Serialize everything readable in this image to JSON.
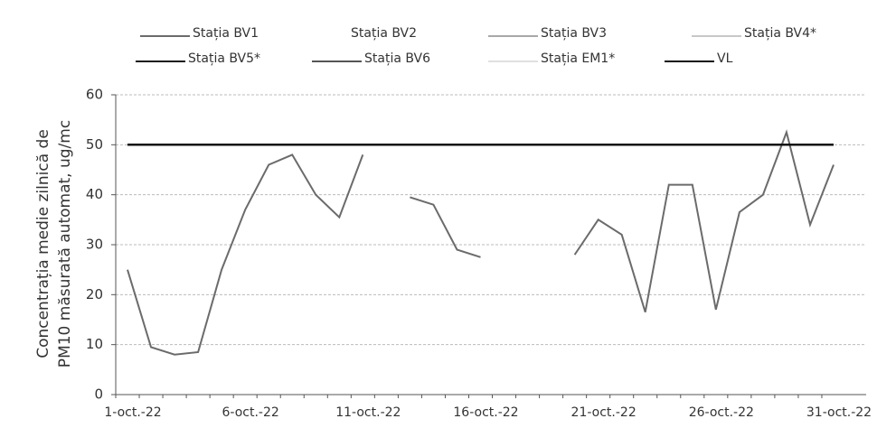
{
  "chart_data": {
    "type": "line",
    "y_label": [
      "Concentrația medie zilnică de",
      "PM10 măsurată automat, ug/mc"
    ],
    "categories": [
      "1-oct.-22",
      null,
      null,
      null,
      null,
      "6-oct.-22",
      null,
      null,
      null,
      null,
      "11-oct.-22",
      null,
      null,
      null,
      null,
      "16-oct.-22",
      null,
      null,
      null,
      null,
      "21-oct.-22",
      null,
      null,
      null,
      null,
      "26-oct.-22",
      null,
      null,
      null,
      null,
      "31-oct.-22"
    ],
    "series": [
      {
        "name": "Stația BV1",
        "color": "#6b6b6b",
        "values": [
          25,
          9.5,
          8,
          8.5,
          25,
          37,
          46,
          48,
          40,
          35.5,
          48,
          null,
          39.5,
          38,
          29,
          27.5,
          null,
          null,
          null,
          28,
          35,
          32,
          16.5,
          42,
          42,
          17,
          36.5,
          40,
          52.5,
          34,
          46
        ]
      },
      {
        "name": "Stația BV2",
        "color": "#ffffff",
        "values": [
          null,
          null,
          null,
          null,
          null,
          null,
          null,
          null,
          null,
          null,
          null,
          null,
          null,
          null,
          null,
          null,
          null,
          null,
          null,
          null,
          null,
          null,
          null,
          null,
          null,
          null,
          null,
          null,
          null,
          null,
          null
        ]
      },
      {
        "name": "Stația BV3",
        "color": "#a8a8a8",
        "values": [
          null,
          null,
          null,
          null,
          null,
          null,
          null,
          null,
          null,
          null,
          null,
          null,
          null,
          null,
          null,
          null,
          null,
          null,
          null,
          null,
          null,
          null,
          null,
          null,
          null,
          null,
          null,
          null,
          null,
          null,
          null
        ]
      },
      {
        "name": "Stația BV4*",
        "color": "#c8c8c8",
        "values": [
          null,
          null,
          null,
          null,
          null,
          null,
          null,
          null,
          null,
          null,
          null,
          null,
          null,
          null,
          null,
          null,
          null,
          null,
          null,
          null,
          null,
          null,
          null,
          null,
          null,
          null,
          null,
          null,
          null,
          null,
          null
        ]
      },
      {
        "name": "Stația BV5*",
        "color": "#1a1a1a",
        "values": [
          null,
          null,
          null,
          null,
          null,
          null,
          null,
          null,
          null,
          null,
          null,
          null,
          null,
          null,
          null,
          null,
          null,
          null,
          null,
          null,
          null,
          null,
          null,
          null,
          null,
          null,
          null,
          null,
          null,
          null,
          null
        ]
      },
      {
        "name": "Stația BV6",
        "color": "#555555",
        "values": [
          null,
          null,
          null,
          null,
          null,
          null,
          null,
          null,
          null,
          null,
          null,
          null,
          null,
          null,
          null,
          null,
          null,
          null,
          null,
          null,
          null,
          null,
          null,
          null,
          null,
          null,
          null,
          null,
          null,
          null,
          null
        ]
      },
      {
        "name": "Stația EM1*",
        "color": "#e0e0e0",
        "values": [
          null,
          null,
          null,
          null,
          null,
          null,
          null,
          null,
          null,
          null,
          null,
          null,
          null,
          null,
          null,
          null,
          null,
          null,
          null,
          null,
          null,
          null,
          null,
          null,
          null,
          null,
          null,
          null,
          null,
          null,
          null
        ]
      },
      {
        "name": "VL",
        "color": "#111111",
        "values": [
          50,
          50,
          50,
          50,
          50,
          50,
          50,
          50,
          50,
          50,
          50,
          50,
          50,
          50,
          50,
          50,
          50,
          50,
          50,
          50,
          50,
          50,
          50,
          50,
          50,
          50,
          50,
          50,
          50,
          50,
          50
        ]
      }
    ],
    "ylim": [
      0,
      60
    ],
    "yticks": [
      0,
      10,
      20,
      30,
      40,
      50,
      60
    ],
    "grid": true,
    "legend": "top"
  }
}
